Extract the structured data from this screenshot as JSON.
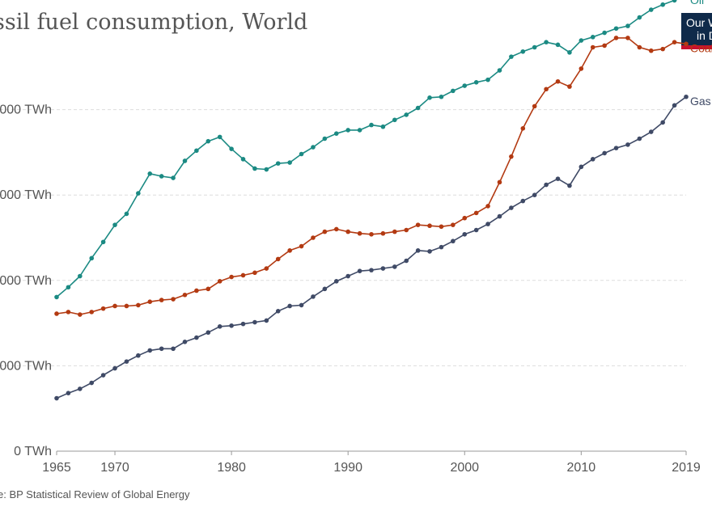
{
  "header": {
    "title": "ssil fuel consumption, World",
    "logo_line1": "Our W",
    "logo_line2": "in D"
  },
  "footer": {
    "source": "e: BP Statistical Review of Global Energy"
  },
  "colors": {
    "oil": "#1b8a83",
    "coal": "#b33a12",
    "gas": "#3f4a66",
    "grid": "#dddddd",
    "axis_text": "#555555"
  },
  "chart_data": {
    "type": "line",
    "ylim": [
      0,
      50000
    ],
    "y_ticks": [
      {
        "value": 0,
        "label": "0 TWh"
      },
      {
        "value": 10000,
        "label": "000 TWh"
      },
      {
        "value": 20000,
        "label": "000 TWh"
      },
      {
        "value": 30000,
        "label": "000 TWh"
      },
      {
        "value": 40000,
        "label": "000 TWh"
      }
    ],
    "x_ticks": [
      1965,
      1970,
      1980,
      1990,
      2000,
      2010,
      2019
    ],
    "grid": "horizontal-dashed",
    "x": [
      1965,
      1966,
      1967,
      1968,
      1969,
      1970,
      1971,
      1972,
      1973,
      1974,
      1975,
      1976,
      1977,
      1978,
      1979,
      1980,
      1981,
      1982,
      1983,
      1984,
      1985,
      1986,
      1987,
      1988,
      1989,
      1990,
      1991,
      1992,
      1993,
      1994,
      1995,
      1996,
      1997,
      1998,
      1999,
      2000,
      2001,
      2002,
      2003,
      2004,
      2005,
      2006,
      2007,
      2008,
      2009,
      2010,
      2011,
      2012,
      2013,
      2014,
      2015,
      2016,
      2017,
      2018,
      2019
    ],
    "series": [
      {
        "name": "Oil",
        "color": "#1b8a83",
        "values": [
          18050,
          19200,
          20500,
          22600,
          24500,
          26500,
          27800,
          30200,
          32500,
          32200,
          32000,
          34000,
          35200,
          36300,
          36800,
          35400,
          34200,
          33100,
          33000,
          33700,
          33800,
          34800,
          35600,
          36600,
          37200,
          37600,
          37600,
          38200,
          38000,
          38800,
          39400,
          40200,
          41400,
          41500,
          42200,
          42800,
          43200,
          43500,
          44600,
          46200,
          46800,
          47300,
          47900,
          47600,
          46700,
          48100,
          48500,
          49000,
          49500,
          49800,
          50800,
          51700,
          52300,
          52800,
          53300
        ]
      },
      {
        "name": "Coal",
        "color": "#b33a12",
        "values": [
          16100,
          16300,
          16000,
          16300,
          16700,
          17000,
          17000,
          17100,
          17500,
          17700,
          17800,
          18300,
          18800,
          19000,
          19900,
          20400,
          20600,
          20900,
          21400,
          22500,
          23500,
          24000,
          25000,
          25700,
          26000,
          25700,
          25500,
          25400,
          25500,
          25700,
          25900,
          26500,
          26400,
          26300,
          26500,
          27300,
          27900,
          28700,
          31500,
          34500,
          37800,
          40400,
          42400,
          43300,
          42700,
          44800,
          47300,
          47500,
          48400,
          48400,
          47300,
          46900,
          47100,
          47900,
          47700
        ]
      },
      {
        "name": "Gas",
        "color": "#3f4a66",
        "values": [
          6200,
          6800,
          7300,
          8000,
          8900,
          9700,
          10500,
          11200,
          11800,
          12000,
          12000,
          12800,
          13300,
          13900,
          14600,
          14700,
          14900,
          15100,
          15300,
          16400,
          17000,
          17100,
          18100,
          19000,
          19900,
          20500,
          21100,
          21200,
          21400,
          21600,
          22300,
          23500,
          23400,
          23900,
          24600,
          25400,
          25900,
          26600,
          27500,
          28500,
          29300,
          30000,
          31200,
          31900,
          31100,
          33300,
          34200,
          34900,
          35500,
          35900,
          36600,
          37400,
          38500,
          40500,
          41500
        ]
      }
    ]
  }
}
